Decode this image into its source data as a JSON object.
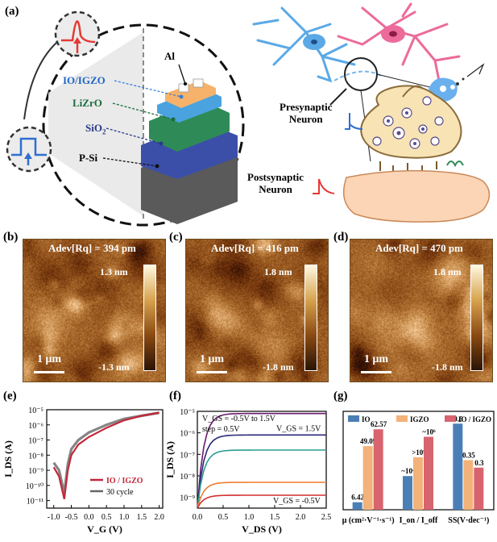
{
  "panels": {
    "a": "(a)",
    "b": "(b)",
    "c": "(c)",
    "d": "(d)",
    "e": "(e)",
    "f": "(f)",
    "g": "(g)"
  },
  "device": {
    "al": "Al",
    "io_igzo": "IO/IGZO",
    "lizro": "LiZrO",
    "sio2_main": "SiO",
    "sio2_sub": "2",
    "psi": "P-Si"
  },
  "neuron": {
    "pre_1": "Presynaptic",
    "pre_2": "Neuron",
    "post_1": "Postsynaptic",
    "post_2": "Neuron"
  },
  "afm": [
    {
      "title": "Adev[Rq] = 394 pm",
      "top": "1.3 nm",
      "bottom": "-1.3 nm",
      "scale": "1 μm"
    },
    {
      "title": "Adev[Rq] = 416 pm",
      "top": "1.8 nm",
      "bottom": "-1.8 nm",
      "scale": "1 μm"
    },
    {
      "title": "Adev[Rq] = 470 pm",
      "top": "1.8 nm",
      "bottom": "-1.8 nm",
      "scale": "1 μm"
    }
  ],
  "colors": {
    "io": "#4a7fb5",
    "igzo": "#f2b27a",
    "io_igzo": "#d7646f",
    "device_orange": "#f6b26b",
    "device_blue": "#4aa3df",
    "device_green": "#2e8b57",
    "device_navy": "#3b4fa8",
    "device_gray": "#555555"
  },
  "chart_data": [
    {
      "type": "line",
      "panel": "e",
      "xlabel": "V_G (V)",
      "ylabel": "I_DS (A)",
      "xlim": [
        -1.2,
        2.1
      ],
      "ylim_log10": [
        -11.5,
        -5
      ],
      "yscale": "log",
      "xticks": [
        "-1.0",
        "-0.5",
        "0.0",
        "0.5",
        "1.0",
        "1.5",
        "2.0"
      ],
      "yticks": [
        "10⁻¹¹",
        "10⁻¹⁰",
        "10⁻⁹",
        "10⁻⁸",
        "10⁻⁷",
        "10⁻⁶",
        "10⁻⁵"
      ],
      "legend": [
        "IO / IGZO",
        "30 cycle"
      ],
      "legend_position": "bottom-right",
      "series": [
        {
          "name": "IO / IGZO",
          "x": [
            -1.0,
            -0.85,
            -0.7,
            -0.6,
            -0.5,
            -0.3,
            0.0,
            0.5,
            1.0,
            1.5,
            2.0
          ],
          "log10y": [
            -8.8,
            -9.4,
            -10.9,
            -9.0,
            -8.0,
            -7.3,
            -6.8,
            -6.2,
            -5.7,
            -5.4,
            -5.2
          ]
        },
        {
          "name": "30 cycle",
          "x": [
            -1.0,
            -0.85,
            -0.7,
            -0.6,
            -0.5,
            -0.3,
            0.0,
            0.5,
            1.0,
            1.5,
            2.0
          ],
          "log10y": [
            -8.5,
            -9.0,
            -10.5,
            -8.6,
            -7.6,
            -7.0,
            -6.5,
            -6.0,
            -5.6,
            -5.4,
            -5.2
          ]
        }
      ]
    },
    {
      "type": "line",
      "panel": "f",
      "xlabel": "V_DS (V)",
      "ylabel": "I_DS (A)",
      "xlim": [
        0,
        2.5
      ],
      "ylim_log10": [
        -9.5,
        -5
      ],
      "yscale": "log",
      "xticks": [
        "0.0",
        "0.5",
        "1.0",
        "1.5",
        "2.0",
        "2.5"
      ],
      "yticks": [
        "10⁻⁹",
        "10⁻⁸",
        "10⁻⁷",
        "10⁻⁶",
        "10⁻⁵"
      ],
      "annotations": [
        "V_GS = -0.5V to 1.5V",
        "step = 0.5V",
        "V_GS = 1.5V",
        "V_GS = -0.5V"
      ],
      "series": [
        {
          "color": "#6a1b6e",
          "sat_log10": -5.1
        },
        {
          "color": "#2a2a7a",
          "sat_log10": -6.1
        },
        {
          "color": "#2a9d8f",
          "sat_log10": -6.8
        },
        {
          "color": "#ef7d2e",
          "sat_log10": -8.3
        },
        {
          "color": "#d32f2f",
          "sat_log10": -8.9
        }
      ]
    },
    {
      "type": "bar",
      "panel": "g",
      "categories": [
        "μ (cm²·V⁻¹·s⁻¹)",
        "I_on / I_off",
        "SS(V·dec⁻¹)"
      ],
      "legend": [
        "IO",
        "IGZO",
        "IO / IGZO"
      ],
      "legend_position": "top",
      "series": [
        {
          "name": "IO",
          "heights": [
            0.08,
            0.36,
            0.92
          ],
          "labels": [
            "6.42",
            "~10⁴",
            "0.6"
          ]
        },
        {
          "name": "IGZO",
          "heights": [
            0.68,
            0.56,
            0.53
          ],
          "labels": [
            "49.09",
            ">10⁵",
            "0.35"
          ]
        },
        {
          "name": "IO / IGZO",
          "heights": [
            0.86,
            0.78,
            0.45
          ],
          "labels": [
            "62.57",
            "~10⁶",
            "0.3"
          ]
        }
      ]
    }
  ]
}
